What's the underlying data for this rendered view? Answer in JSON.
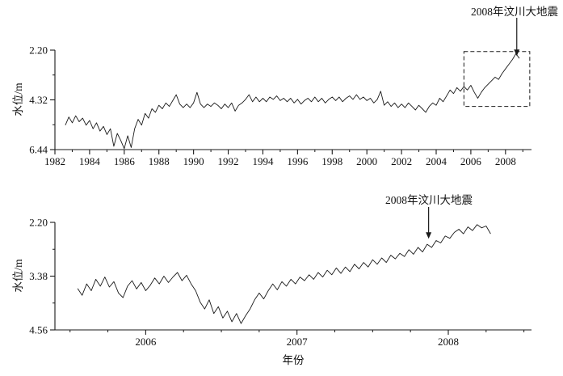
{
  "figure": {
    "xlabel": "年份",
    "background": "#ffffff",
    "line_color": "#1a1a1a"
  },
  "chart_data": [
    {
      "type": "line",
      "title": "",
      "xlabel": "",
      "ylabel": "水位/m",
      "legend": "none",
      "grid": false,
      "y_axis_inverted_depth": true,
      "y_ticks": [
        {
          "v": 2.2,
          "label": "2.20"
        },
        {
          "v": 4.32,
          "label": "4.32"
        },
        {
          "v": 6.44,
          "label": "6.44"
        }
      ],
      "y_minor_ticks": [
        3.26,
        5.38
      ],
      "x_ticks": [
        1982,
        1984,
        1986,
        1988,
        1990,
        1992,
        1994,
        1996,
        1998,
        2000,
        2002,
        2004,
        2006,
        2008
      ],
      "x_minor_ticks": [
        1983,
        1985,
        1987,
        1989,
        1991,
        1993,
        1995,
        1997,
        1999,
        2001,
        2003,
        2005,
        2007,
        2009
      ],
      "xlim": [
        1982,
        2009.5
      ],
      "ylim_top_to_bottom": [
        2.2,
        6.44
      ],
      "series": [
        {
          "name": "water-level-1982-2008",
          "x_start": 1982.6,
          "x_step": 0.2,
          "values": [
            5.4,
            5.05,
            5.3,
            5.0,
            5.25,
            5.1,
            5.4,
            5.2,
            5.55,
            5.3,
            5.65,
            5.45,
            5.8,
            5.55,
            6.3,
            5.75,
            6.05,
            6.4,
            5.85,
            6.35,
            5.55,
            5.15,
            5.4,
            4.9,
            5.1,
            4.7,
            4.85,
            4.55,
            4.7,
            4.45,
            4.6,
            4.35,
            4.1,
            4.5,
            4.65,
            4.5,
            4.65,
            4.45,
            4.0,
            4.5,
            4.65,
            4.5,
            4.6,
            4.45,
            4.55,
            4.7,
            4.5,
            4.65,
            4.45,
            4.8,
            4.55,
            4.45,
            4.3,
            4.1,
            4.4,
            4.2,
            4.4,
            4.25,
            4.4,
            4.2,
            4.3,
            4.15,
            4.35,
            4.25,
            4.4,
            4.25,
            4.45,
            4.3,
            4.5,
            4.35,
            4.25,
            4.4,
            4.2,
            4.4,
            4.25,
            4.45,
            4.3,
            4.2,
            4.35,
            4.2,
            4.4,
            4.25,
            4.15,
            4.3,
            4.1,
            4.3,
            4.2,
            4.35,
            4.25,
            4.45,
            4.3,
            3.95,
            4.55,
            4.4,
            4.6,
            4.45,
            4.65,
            4.5,
            4.65,
            4.45,
            4.6,
            4.75,
            4.55,
            4.7,
            4.85,
            4.6,
            4.45,
            4.55,
            4.25,
            4.4,
            4.15,
            3.9,
            4.05,
            3.8,
            3.95,
            3.75,
            3.9,
            3.7,
            4.0,
            4.25,
            4.0,
            3.8,
            3.65,
            3.5,
            3.35,
            3.45,
            3.2,
            3.0,
            2.8,
            2.6,
            2.35,
            2.55
          ]
        }
      ],
      "annotation": {
        "text": "2008年汶川大地震",
        "arrow_x": 2008.65,
        "tip_y": 2.45
      },
      "highlight_box": {
        "x0": 2005.6,
        "x1": 2009.4,
        "y0": 2.26,
        "y1": 4.6
      }
    },
    {
      "type": "line",
      "title": "",
      "xlabel": "年份",
      "ylabel": "水位/m",
      "legend": "none",
      "grid": false,
      "y_axis_inverted_depth": true,
      "y_ticks": [
        {
          "v": 2.2,
          "label": "2.20"
        },
        {
          "v": 3.38,
          "label": "3.38"
        },
        {
          "v": 4.56,
          "label": "4.56"
        }
      ],
      "y_minor_ticks": [
        2.79,
        3.97
      ],
      "x_ticks": [
        2006,
        2007,
        2008
      ],
      "x_minor_ticks": [
        2005.5,
        2005.75,
        2006.25,
        2006.5,
        2006.75,
        2007.25,
        2007.5,
        2007.75,
        2008.25,
        2008.5
      ],
      "xlim": [
        2005.4,
        2008.55
      ],
      "ylim_top_to_bottom": [
        2.2,
        4.56
      ],
      "series": [
        {
          "name": "water-level-2006-2008",
          "x_start": 2005.55,
          "x_step": 0.03,
          "values": [
            3.65,
            3.8,
            3.55,
            3.7,
            3.45,
            3.6,
            3.4,
            3.62,
            3.5,
            3.75,
            3.85,
            3.6,
            3.48,
            3.66,
            3.52,
            3.7,
            3.58,
            3.42,
            3.55,
            3.38,
            3.52,
            3.4,
            3.3,
            3.48,
            3.36,
            3.55,
            3.7,
            3.95,
            4.1,
            3.9,
            4.2,
            4.05,
            4.3,
            4.15,
            4.38,
            4.2,
            4.42,
            4.25,
            4.1,
            3.9,
            3.75,
            3.88,
            3.7,
            3.55,
            3.68,
            3.5,
            3.6,
            3.45,
            3.55,
            3.4,
            3.48,
            3.35,
            3.45,
            3.3,
            3.4,
            3.25,
            3.35,
            3.2,
            3.32,
            3.18,
            3.28,
            3.12,
            3.22,
            3.08,
            3.18,
            3.02,
            3.12,
            2.98,
            3.08,
            2.92,
            3.0,
            2.88,
            2.95,
            2.8,
            2.9,
            2.75,
            2.85,
            2.68,
            2.75,
            2.6,
            2.65,
            2.5,
            2.55,
            2.42,
            2.35,
            2.45,
            2.3,
            2.38,
            2.25,
            2.32,
            2.28,
            2.45
          ]
        }
      ],
      "annotation": {
        "text": "2008年汶川大地震",
        "arrow_x": 2007.87,
        "tip_y": 2.56
      }
    }
  ]
}
